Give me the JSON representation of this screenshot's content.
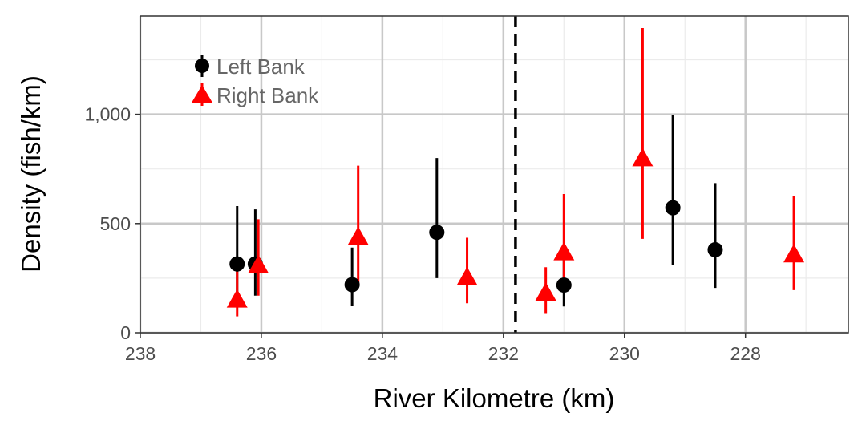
{
  "chart_data": {
    "type": "scatter",
    "xlabel": "River Kilometre (km)",
    "ylabel": "Density (fish/km)",
    "x_reversed": true,
    "xlim": [
      238,
      226.3
    ],
    "ylim": [
      0,
      1450
    ],
    "x_ticks": [
      238,
      236,
      234,
      232,
      230,
      228
    ],
    "x_tick_labels": [
      "238",
      "236",
      "234",
      "232",
      "230",
      "228"
    ],
    "y_ticks": [
      0,
      500,
      1000
    ],
    "y_tick_labels": [
      "0",
      "500",
      "1,000"
    ],
    "grid": true,
    "legend_position": "top-left",
    "reference_line": {
      "x": 231.8,
      "style": "dashed"
    },
    "series": [
      {
        "name": "Left Bank",
        "marker": "circle",
        "color": "#000000",
        "points": [
          {
            "x": 236.4,
            "y": 315,
            "lo": 185,
            "hi": 580
          },
          {
            "x": 236.1,
            "y": 315,
            "lo": 170,
            "hi": 565
          },
          {
            "x": 234.5,
            "y": 220,
            "lo": 125,
            "hi": 390
          },
          {
            "x": 233.1,
            "y": 460,
            "lo": 250,
            "hi": 800
          },
          {
            "x": 231.0,
            "y": 218,
            "lo": 120,
            "hi": 360
          },
          {
            "x": 229.2,
            "y": 572,
            "lo": 310,
            "hi": 995
          },
          {
            "x": 228.5,
            "y": 380,
            "lo": 205,
            "hi": 685
          }
        ]
      },
      {
        "name": "Right Bank",
        "marker": "triangle",
        "color": "#ff0000",
        "points": [
          {
            "x": 236.4,
            "y": 148,
            "lo": 75,
            "hi": 280
          },
          {
            "x": 236.05,
            "y": 305,
            "lo": 170,
            "hi": 520
          },
          {
            "x": 234.4,
            "y": 435,
            "lo": 230,
            "hi": 765
          },
          {
            "x": 232.6,
            "y": 250,
            "lo": 135,
            "hi": 435
          },
          {
            "x": 231.3,
            "y": 180,
            "lo": 90,
            "hi": 300
          },
          {
            "x": 231.0,
            "y": 365,
            "lo": 200,
            "hi": 635
          },
          {
            "x": 229.7,
            "y": 795,
            "lo": 430,
            "hi": 1395
          },
          {
            "x": 227.2,
            "y": 355,
            "lo": 195,
            "hi": 625
          }
        ]
      }
    ]
  }
}
